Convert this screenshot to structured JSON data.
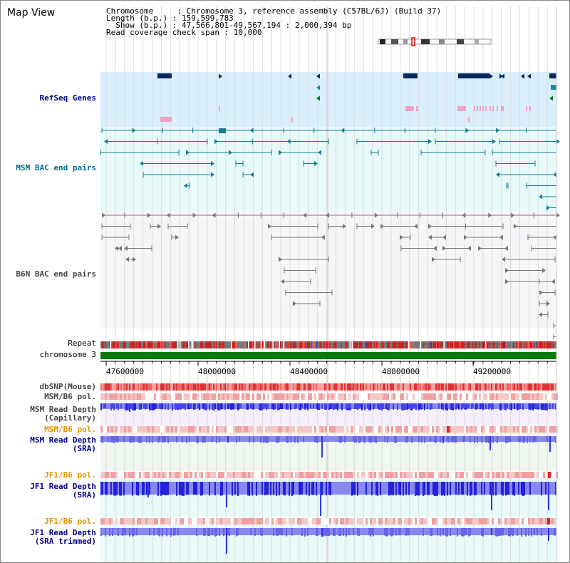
{
  "header": {
    "title": "Map View",
    "info_lines": [
      "Chromosome     : Chromosome 3, reference assembly (C57BL/6J) (Build 37)",
      "Length (b.p.) : 159,599,783",
      "  Show (b.p.) : 47,566,801-49,567,194 : 2,000,394 bp",
      "Read coverage check span : 10,000"
    ]
  },
  "tracks": {
    "refseq": "RefSeq Genes",
    "msm_bac": "MSM BAC end pairs",
    "b6n_bac": "B6N BAC end pairs",
    "repeat": "Repeat",
    "chromosome": "chromosome 3",
    "dbsnp": "dbSNP(Mouse)",
    "msm_b6_pol_1": "MSM/B6 pol.",
    "msm_read_depth_cap": [
      "MSM Read Depth",
      "(Capillary)"
    ],
    "msm_b6_pol_2": "MSM/B6 pol.",
    "msm_read_depth_sra": [
      "MSM Read Depth",
      "(SRA)"
    ],
    "jf1_b6_pol_1": "JF1/B6 pol.",
    "jf1_read_depth_sra": [
      "JF1 Read Depth",
      "(SRA)"
    ],
    "jf1_b6_pol_2": "JF1/B6 pol.",
    "jf1_read_depth_trim": [
      "JF1 Read Depth",
      "(SRA trimmed)"
    ]
  },
  "axis": {
    "ticks": [
      "47600000",
      "48000000",
      "48400000",
      "48800000",
      "49200000"
    ]
  },
  "colors": {
    "refseq_bg": "#d8eefa",
    "msm_bac_bg": "#e6fafa",
    "b6n_bac_bg": "#f4f6f8",
    "gene": "#0b2a5c",
    "refseq_cyan": "#1a8aa0",
    "refseq_green": "#0a7a2a",
    "refseq_pink": "#f4a0c0",
    "msm_bac": "#1a7a94",
    "b6n_bac": "#777777",
    "chromosome": "#0a7a0a",
    "depth_blue": "#3333ee",
    "depth_light": "#8888f0",
    "pol_pink": "#f6c6c6",
    "pol_red": "#dd2222"
  }
}
